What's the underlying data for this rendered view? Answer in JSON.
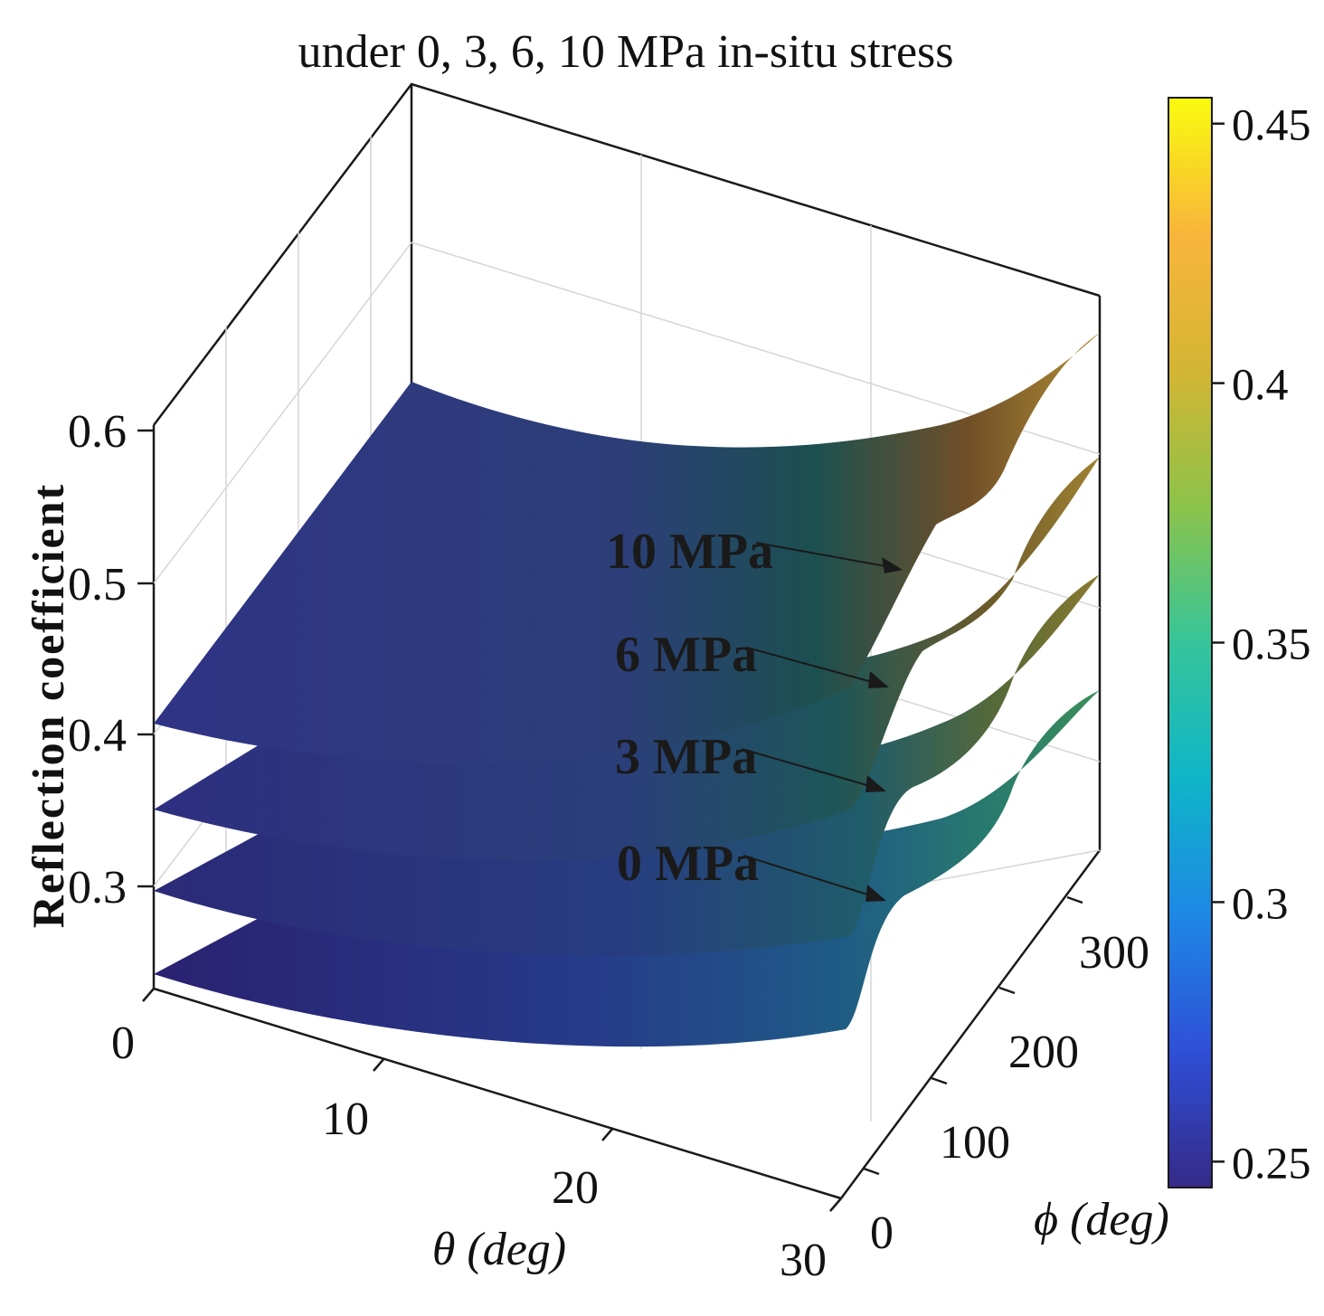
{
  "chart_data": {
    "type": "surface",
    "title": "under 0, 3, 6, 10 MPa in-situ stress",
    "xlabel": "θ  (deg)",
    "ylabel": "ϕ  (deg)",
    "zlabel": "Reflection coefficient",
    "xlim": [
      0,
      30
    ],
    "ylim": [
      0,
      360
    ],
    "zlim": [
      0.24,
      0.6
    ],
    "x_ticks": [
      "0",
      "10",
      "20",
      "30"
    ],
    "y_ticks": [
      "0",
      "100",
      "200",
      "300"
    ],
    "z_ticks": [
      "0.3",
      "0.4",
      "0.5",
      "0.6"
    ],
    "grid": true,
    "colormap": "parula",
    "colorbar": {
      "range": [
        0.245,
        0.455
      ],
      "ticks": [
        "0.25",
        "0.3",
        "0.35",
        "0.4",
        "0.45"
      ],
      "colors": [
        "#352a87",
        "#2f4fd8",
        "#1e88e5",
        "#0fb5c8",
        "#36c59a",
        "#8cc34a",
        "#d4b533",
        "#f9b53b",
        "#f9fb0e"
      ]
    },
    "series": [
      {
        "name": "0 MPa",
        "base": 0.243,
        "values_at_theta": [
          [
            0,
            0.243
          ],
          [
            10,
            0.26
          ],
          [
            20,
            0.29
          ],
          [
            28,
            0.33
          ],
          [
            30,
            0.36
          ]
        ]
      },
      {
        "name": "3 MPa",
        "base": 0.297,
        "values_at_theta": [
          [
            0,
            0.297
          ],
          [
            10,
            0.31
          ],
          [
            20,
            0.34
          ],
          [
            28,
            0.39
          ],
          [
            30,
            0.41
          ]
        ]
      },
      {
        "name": "6 MPa",
        "base": 0.35,
        "values_at_theta": [
          [
            0,
            0.35
          ],
          [
            10,
            0.365
          ],
          [
            20,
            0.4
          ],
          [
            28,
            0.44
          ],
          [
            30,
            0.46
          ]
        ]
      },
      {
        "name": "10 MPa",
        "base": 0.405,
        "values_at_theta": [
          [
            0,
            0.405
          ],
          [
            10,
            0.42
          ],
          [
            20,
            0.46
          ],
          [
            28,
            0.5
          ],
          [
            30,
            0.52
          ]
        ]
      }
    ],
    "annotations": [
      "10 MPa",
      "6 MPa",
      "3 MPa",
      "0 MPa"
    ]
  }
}
